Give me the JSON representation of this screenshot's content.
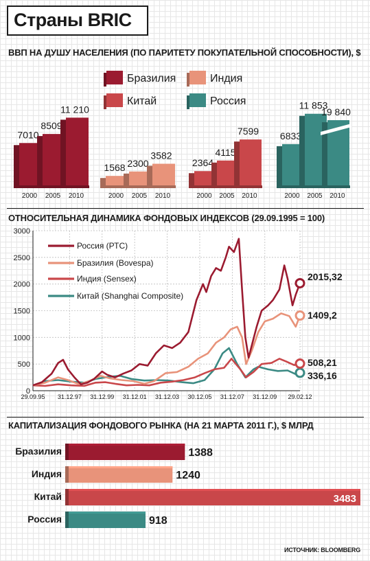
{
  "title": "Страны BRIC",
  "colors": {
    "brazil": "#9b1b30",
    "india": "#e8937a",
    "china": "#c9474a",
    "russia": "#3b8a84",
    "grid": "#e6e6e6"
  },
  "gdp_section": {
    "title": "ВВП НА ДУШУ НАСЕЛЕНИЯ (ПО ПАРИТЕТУ ПОКУПАТЕЛЬНОЙ СПОСОБНОСТИ), $"
  },
  "index_section": {
    "title": "ОТНОСИТЕЛЬНАЯ ДИНАМИКА ФОНДОВЫХ ИНДЕКСОВ (29.09.1995 = 100)"
  },
  "cap_section": {
    "title": "КАПИТАЛИЗАЦИЯ ФОНДОВОГО РЫНКА (НА 21 МАРТА 2011 Г.), $ МЛРД"
  },
  "source": "ИСТОЧНИК: BLOOMBERG",
  "chart_data": [
    {
      "type": "bar",
      "title": "ВВП НА ДУШУ НАСЕЛЕНИЯ (ПО ПАРИТЕТУ ПОКУПАТЕЛЬНОЙ СПОСОБНОСТИ), $",
      "categories": [
        "2000",
        "2005",
        "2010"
      ],
      "value_labels_raw": {
        "Бразилия": [
          "7010",
          "8509",
          "11 210"
        ],
        "Индия": [
          "1568",
          "2300",
          "3582"
        ],
        "Китай": [
          "2364",
          "4115",
          "7599"
        ],
        "Россия": [
          "6833",
          "11 853",
          "19 840"
        ]
      },
      "series": [
        {
          "name": "Бразилия",
          "color": "#9b1b30",
          "values": [
            7010,
            8509,
            11210
          ]
        },
        {
          "name": "Индия",
          "color": "#e8937a",
          "values": [
            1568,
            2300,
            3582
          ]
        },
        {
          "name": "Китай",
          "color": "#c9474a",
          "values": [
            2364,
            4115,
            7599
          ]
        },
        {
          "name": "Россия",
          "color": "#3b8a84",
          "values": [
            6833,
            11853,
            19840
          ]
        }
      ],
      "legend": [
        "Бразилия",
        "Индия",
        "Китай",
        "Россия"
      ],
      "legend_position": "top-center",
      "axis_break": "Россия 2010"
    },
    {
      "type": "line",
      "title": "ОТНОСИТЕЛЬНАЯ ДИНАМИКА ФОНДОВЫХ ИНДЕКСОВ (29.09.1995 = 100)",
      "x_ticks": [
        "29.09.95",
        "31.12.97",
        "31.12.99",
        "31.12.01",
        "31.12.03",
        "30.12.05",
        "31.12.07",
        "31.12.09",
        "29.02.12"
      ],
      "x_tick_years": [
        1995.75,
        1998.0,
        2000.0,
        2002.0,
        2004.0,
        2006.0,
        2008.0,
        2010.0,
        2012.16
      ],
      "xlim": [
        1995.75,
        2012.16
      ],
      "ylim": [
        0,
        3000
      ],
      "y_ticks": [
        0,
        500,
        1000,
        1500,
        2000,
        2500,
        3000
      ],
      "grid": true,
      "legend_position": "top-left",
      "series": [
        {
          "name": "Россия (РТС)",
          "color": "#9b1b30",
          "end_label": "2015,32",
          "x": [
            1995.75,
            1996.3,
            1996.9,
            1997.3,
            1997.6,
            1997.9,
            1998.3,
            1998.7,
            1999.1,
            1999.5,
            2000.0,
            2000.3,
            2000.8,
            2001.3,
            2001.8,
            2002.3,
            2002.8,
            2003.3,
            2003.8,
            2004.3,
            2004.8,
            2005.3,
            2005.8,
            2006.2,
            2006.4,
            2006.7,
            2007.0,
            2007.3,
            2007.6,
            2007.8,
            2008.1,
            2008.4,
            2008.6,
            2008.8,
            2009.0,
            2009.2,
            2009.5,
            2009.8,
            2010.2,
            2010.5,
            2010.9,
            2011.2,
            2011.4,
            2011.7,
            2011.9,
            2012.16
          ],
          "y": [
            100,
            160,
            320,
            520,
            580,
            400,
            250,
            120,
            150,
            220,
            360,
            300,
            250,
            320,
            380,
            500,
            470,
            700,
            850,
            800,
            900,
            1100,
            1700,
            2000,
            1850,
            2150,
            2300,
            2250,
            2500,
            2700,
            2600,
            2850,
            1900,
            1000,
            620,
            850,
            1200,
            1500,
            1600,
            1700,
            1900,
            2350,
            2100,
            1600,
            1800,
            2015.32
          ]
        },
        {
          "name": "Бразилия (Bovespa)",
          "color": "#e8937a",
          "end_label": "1409,2",
          "x": [
            1995.75,
            1996.5,
            1997.3,
            1997.9,
            1998.6,
            1999.2,
            1999.9,
            2000.5,
            2001.2,
            2001.9,
            2002.6,
            2003.2,
            2003.9,
            2004.6,
            2005.3,
            2005.9,
            2006.5,
            2007.0,
            2007.5,
            2007.9,
            2008.3,
            2008.6,
            2008.85,
            2009.2,
            2009.6,
            2010.0,
            2010.5,
            2011.0,
            2011.5,
            2011.9,
            2012.16
          ],
          "y": [
            100,
            150,
            250,
            200,
            120,
            180,
            280,
            230,
            200,
            180,
            130,
            180,
            330,
            350,
            450,
            600,
            700,
            900,
            1000,
            1150,
            1200,
            1000,
            500,
            750,
            1100,
            1300,
            1350,
            1450,
            1400,
            1200,
            1409.2
          ]
        },
        {
          "name": "Индия (Sensex)",
          "color": "#c9474a",
          "end_label": "508,21",
          "x": [
            1995.75,
            1996.5,
            1997.3,
            1998.1,
            1998.9,
            1999.6,
            2000.2,
            2000.8,
            2001.5,
            2002.2,
            2002.9,
            2003.6,
            2004.3,
            2005.0,
            2005.7,
            2006.3,
            2006.9,
            2007.5,
            2007.95,
            2008.5,
            2008.85,
            2009.3,
            2009.8,
            2010.4,
            2010.9,
            2011.3,
            2011.8,
            2012.16
          ],
          "y": [
            100,
            90,
            120,
            100,
            90,
            150,
            160,
            130,
            100,
            110,
            100,
            150,
            170,
            200,
            250,
            330,
            400,
            430,
            600,
            400,
            250,
            350,
            500,
            520,
            600,
            550,
            480,
            508.21
          ]
        },
        {
          "name": "Китай (Shanghai Composite)",
          "color": "#3b8a84",
          "end_label": "336,16",
          "x": [
            1995.75,
            1996.5,
            1997.3,
            1998.1,
            1998.9,
            1999.6,
            2000.4,
            2001.1,
            2001.8,
            2002.6,
            2003.4,
            2004.1,
            2004.9,
            2005.6,
            2006.3,
            2006.9,
            2007.4,
            2007.8,
            2008.3,
            2008.8,
            2009.3,
            2009.6,
            2010.2,
            2010.8,
            2011.4,
            2011.9,
            2012.16
          ],
          "y": [
            100,
            180,
            200,
            170,
            150,
            220,
            260,
            280,
            220,
            190,
            200,
            190,
            160,
            140,
            200,
            400,
            700,
            800,
            500,
            250,
            400,
            450,
            400,
            370,
            380,
            310,
            336.16
          ]
        }
      ]
    },
    {
      "type": "bar",
      "orientation": "horizontal",
      "title": "КАПИТАЛИЗАЦИЯ ФОНДОВОГО РЫНКА (НА 21 МАРТА 2011 Г.), $ МЛРД",
      "categories": [
        "Бразилия",
        "Индия",
        "Китай",
        "Россия"
      ],
      "values": [
        1388,
        1240,
        3483,
        918
      ],
      "colors": [
        "#9b1b30",
        "#e8937a",
        "#c9474a",
        "#3b8a84"
      ],
      "xlim": [
        0,
        3483
      ]
    }
  ]
}
